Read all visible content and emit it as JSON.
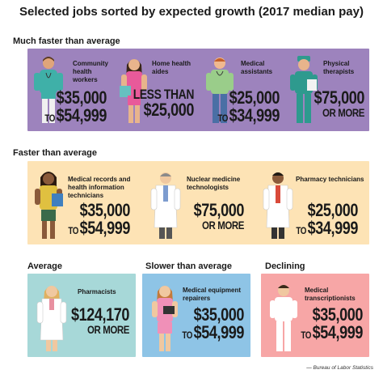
{
  "title": "Selected jobs sorted by expected growth (2017 median pay)",
  "sections": {
    "much_faster": "Much faster than average",
    "faster": "Faster than average",
    "average": "Average",
    "slower": "Slower than average",
    "declining": "Declining"
  },
  "jobs": {
    "community_health": {
      "title": "Community health workers",
      "pay_line1": "$35,000",
      "pay_prefix": "TO",
      "pay_line2": "$54,999"
    },
    "home_health": {
      "title": "Home health aides",
      "pay_line1": "LESS THAN",
      "pay_line2": "$25,000"
    },
    "medical_assistants": {
      "title": "Medical assistants",
      "pay_line1": "$25,000",
      "pay_prefix": "TO",
      "pay_line2": "$34,999"
    },
    "physical_therapists": {
      "title": "Physical therapists",
      "pay_line1": "$75,000",
      "pay_line2": "OR MORE"
    },
    "medical_records": {
      "title": "Medical records and health information technicians",
      "pay_line1": "$35,000",
      "pay_prefix": "TO",
      "pay_line2": "$54,999"
    },
    "nuclear_medicine": {
      "title": "Nuclear medicine technologists",
      "pay_line1": "$75,000",
      "pay_line2": "OR MORE"
    },
    "pharmacy_technicians": {
      "title": "Pharmacy technicians",
      "pay_line1": "$25,000",
      "pay_prefix": "TO",
      "pay_line2": "$34,999"
    },
    "pharmacists": {
      "title": "Pharmacists",
      "pay_line1": "$124,170",
      "pay_line2": "OR MORE"
    },
    "equipment_repairers": {
      "title": "Medical equipment repairers",
      "pay_line1": "$35,000",
      "pay_prefix": "TO",
      "pay_line2": "$54,999"
    },
    "transcriptionists": {
      "title": "Medical transcriptionists",
      "pay_line1": "$35,000",
      "pay_prefix": "TO",
      "pay_line2": "$54,999"
    }
  },
  "source": "— Bureau of Labor Statistics",
  "colors": {
    "purple": "#9d83bd",
    "yellow": "#fde3b5",
    "teal": "#a7d8d8",
    "blue": "#8ec4e6",
    "pink": "#f7a6a6"
  },
  "icons": {
    "community_health": "health-worker-figure-icon",
    "home_health": "home-aide-figure-icon",
    "medical_assistants": "medical-assistant-figure-icon",
    "physical_therapists": "therapist-figure-icon",
    "medical_records": "records-tech-figure-icon",
    "nuclear_medicine": "nuclear-tech-figure-icon",
    "pharmacy_technicians": "pharmacy-tech-figure-icon",
    "pharmacists": "pharmacist-figure-icon",
    "equipment_repairers": "repairer-figure-icon",
    "transcriptionists": "transcriptionist-figure-icon"
  }
}
